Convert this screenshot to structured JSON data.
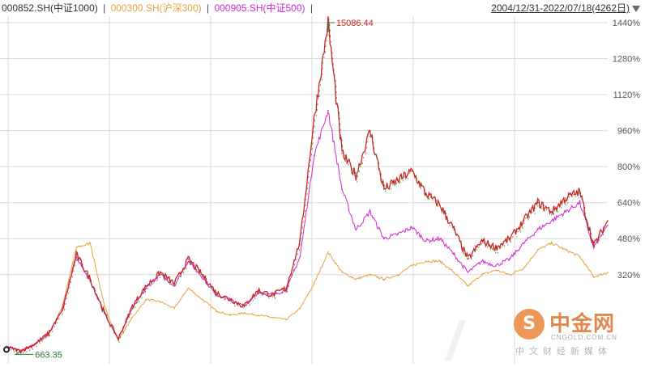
{
  "legend": {
    "items": [
      {
        "text": "000852.SH(中证1000)",
        "color": "#333333"
      },
      {
        "text": "000300.SH(沪深300)",
        "color": "#e8a23a"
      },
      {
        "text": "000905.SH(中证500)",
        "color": "#d12ad1"
      }
    ],
    "separator": "|",
    "date_range": "2004/12/31-2022/07/18(4262日)"
  },
  "colors": {
    "csi1000_up": "#cc2222",
    "csi1000_down": "#2a7a2a",
    "hs300": "#e8a23a",
    "csi500": "#d12ad1",
    "grid": "#d9d9d9"
  },
  "annotations": {
    "peak": "15086.44",
    "low": "663.35"
  },
  "watermark": {
    "logo_glyph": "S",
    "title": "中金网",
    "domain": "CNGOLD.COM.CN",
    "tagline": "中文财经新媒体"
  },
  "chart_data": {
    "type": "line",
    "title": "",
    "xlabel": "",
    "ylabel": "",
    "x": [
      "2005-01",
      "2005-07",
      "2006-01",
      "2006-07",
      "2007-01",
      "2007-05",
      "2007-10",
      "2008-04",
      "2008-11",
      "2009-04",
      "2009-08",
      "2010-01",
      "2010-07",
      "2010-11",
      "2011-06",
      "2012-01",
      "2012-07",
      "2012-12",
      "2013-06",
      "2013-12",
      "2014-06",
      "2015-01",
      "2015-04",
      "2015-06",
      "2015-07",
      "2015-09",
      "2015-12",
      "2016-02",
      "2016-06",
      "2017-01",
      "2017-06",
      "2017-12",
      "2018-06",
      "2018-10",
      "2019-02",
      "2019-04",
      "2019-10",
      "2020-03",
      "2020-08",
      "2021-01",
      "2021-06",
      "2021-12",
      "2022-04",
      "2022-07"
    ],
    "series": [
      {
        "name": "000852.SH(中证1000)",
        "values": [
          0,
          -20,
          10,
          60,
          160,
          410,
          300,
          150,
          35,
          180,
          270,
          330,
          280,
          390,
          320,
          240,
          210,
          180,
          250,
          230,
          260,
          470,
          1010,
          1440,
          860,
          760,
          960,
          700,
          740,
          780,
          680,
          630,
          520,
          390,
          470,
          440,
          480,
          560,
          640,
          600,
          660,
          690,
          450,
          560
        ]
      },
      {
        "name": "000300.SH(沪深300)",
        "values": [
          0,
          -15,
          10,
          50,
          180,
          440,
          460,
          180,
          30,
          130,
          210,
          200,
          170,
          260,
          210,
          160,
          140,
          150,
          140,
          130,
          120,
          170,
          280,
          420,
          330,
          300,
          320,
          300,
          320,
          360,
          380,
          380,
          330,
          270,
          320,
          340,
          320,
          350,
          430,
          460,
          430,
          400,
          310,
          330
        ]
      },
      {
        "name": "000905.SH(中证500)",
        "values": [
          0,
          -18,
          10,
          55,
          165,
          400,
          290,
          150,
          35,
          170,
          260,
          320,
          270,
          380,
          310,
          230,
          210,
          180,
          240,
          230,
          250,
          400,
          850,
          1050,
          700,
          520,
          600,
          480,
          500,
          530,
          470,
          480,
          410,
          330,
          380,
          360,
          390,
          460,
          520,
          560,
          600,
          640,
          440,
          540
        ]
      }
    ],
    "ylim": [
      -40,
      1440
    ],
    "yticks": [
      320,
      480,
      640,
      800,
      960,
      1120,
      1280,
      1440
    ],
    "ytick_labels": [
      "320%",
      "480%",
      "640%",
      "800%",
      "960%",
      "1120%",
      "1280%",
      "1440%"
    ],
    "grid": true,
    "legend": "top-left"
  }
}
